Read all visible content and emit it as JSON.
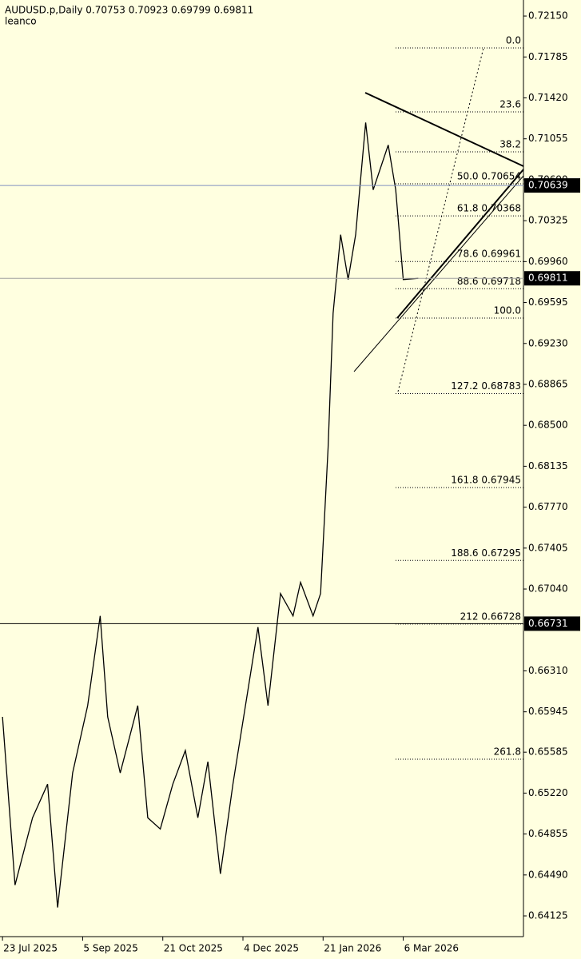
{
  "chart_data": {
    "type": "line",
    "title": "AUDUSD.p,Daily  0.70753 0.70923 0.69799 0.69811",
    "subtitle": "leanco",
    "x": [
      0,
      5,
      12,
      18,
      22,
      28,
      34,
      39,
      42,
      47,
      54,
      58,
      63,
      68,
      73,
      78,
      82,
      87,
      92,
      97,
      102,
      106,
      111,
      116,
      119,
      124,
      127,
      130,
      132,
      135,
      138,
      141,
      145,
      148,
      151,
      154,
      157,
      160,
      166
    ],
    "series": [
      {
        "name": "AUDUSD.p",
        "color": "#000000",
        "values": [
          0.659,
          0.644,
          0.65,
          0.653,
          0.642,
          0.654,
          0.66,
          0.668,
          0.659,
          0.654,
          0.66,
          0.65,
          0.649,
          0.653,
          0.656,
          0.65,
          0.655,
          0.645,
          0.653,
          0.66,
          0.667,
          0.66,
          0.67,
          0.668,
          0.671,
          0.668,
          0.67,
          0.683,
          0.695,
          0.702,
          0.698,
          0.702,
          0.712,
          0.706,
          0.708,
          0.71,
          0.706,
          0.698,
          0.69811
        ]
      }
    ],
    "xlim": [
      -1,
      208
    ],
    "xticks": [
      {
        "value": 0,
        "label": "23 Jul 2025"
      },
      {
        "value": 32,
        "label": "5 Sep 2025"
      },
      {
        "value": 64,
        "label": "21 Oct 2025"
      },
      {
        "value": 96,
        "label": "4 Dec 2025"
      },
      {
        "value": 128,
        "label": "21 Jan 2026"
      },
      {
        "value": 160,
        "label": "6 Mar 2026"
      }
    ],
    "ylim": [
      0.6394,
      0.72293
    ],
    "yticks": [
      {
        "value": 0.7215,
        "label": "0.72150"
      },
      0.71785,
      {
        "value": 0.7142,
        "label": "0.71420"
      },
      0.71055,
      {
        "value": 0.7069,
        "label": "0.70690"
      },
      0.70325,
      {
        "value": 0.6996,
        "label": "0.69960"
      },
      0.69595,
      {
        "value": 0.6923,
        "label": "0.69230"
      },
      0.68865,
      {
        "value": 0.685,
        "label": "0.68500"
      },
      0.68135,
      {
        "value": 0.6777,
        "label": "0.67770"
      },
      0.67405,
      {
        "value": 0.6704,
        "label": "0.67040"
      },
      {
        "value": 0.6631,
        "label": "0.66310"
      },
      0.65945,
      0.65585,
      {
        "value": 0.6522,
        "label": "0.65220"
      },
      0.64855,
      {
        "value": 0.6449,
        "label": "0.64490"
      },
      0.64125
    ],
    "fib_levels": [
      {
        "label": "0.0",
        "value": 0.71865
      },
      {
        "label": "23.6",
        "value": 0.71295
      },
      {
        "label": "38.2",
        "value": 0.70939
      },
      {
        "label": "50.0 0.70654",
        "value": 0.70654
      },
      {
        "label": "61.8 0.70368",
        "value": 0.70368
      },
      {
        "label": "78.6 0.69961",
        "value": 0.69961
      },
      {
        "label": "88.6 0.69718",
        "value": 0.69718
      },
      {
        "label": "100.0",
        "value": 0.69456
      },
      {
        "label": "127.2 0.68783",
        "value": 0.68783
      },
      {
        "label": "161.8 0.67945",
        "value": 0.67945
      },
      {
        "label": "188.6 0.67295",
        "value": 0.67295
      },
      {
        "label": "212 0.66728",
        "value": 0.66728
      },
      {
        "label": "261.8",
        "value": 0.65522
      }
    ],
    "price_lines": [
      {
        "value": 0.70639,
        "color": "#8090c0"
      },
      {
        "value": 0.69811,
        "color": "#a0a0a0"
      },
      {
        "value": 0.66731,
        "color": "#000000"
      }
    ]
  }
}
